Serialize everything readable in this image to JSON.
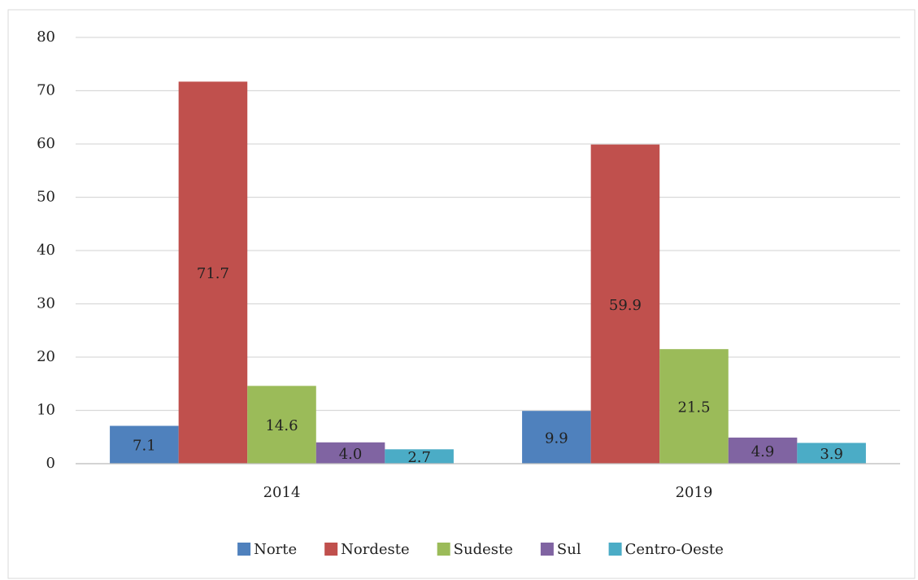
{
  "chart_data": {
    "type": "bar",
    "categories": [
      "2014",
      "2019"
    ],
    "series": [
      {
        "name": "Norte",
        "color": "#4f81bd",
        "values": [
          7.1,
          9.9
        ]
      },
      {
        "name": "Nordeste",
        "color": "#c0504d",
        "values": [
          71.7,
          59.9
        ]
      },
      {
        "name": "Sudeste",
        "color": "#9bbb59",
        "values": [
          14.6,
          21.5
        ]
      },
      {
        "name": "Sul",
        "color": "#8064a2",
        "values": [
          4,
          4.9
        ],
        "value_labels": [
          "4.0",
          "4.9"
        ]
      },
      {
        "name": "Centro-Oeste",
        "color": "#4bacc6",
        "values": [
          2.7,
          3.9
        ]
      }
    ],
    "ylim": [
      0,
      80
    ],
    "yticks": [
      0,
      10,
      20,
      30,
      40,
      50,
      60,
      70,
      80
    ],
    "grid": true,
    "legend": "bottom"
  }
}
